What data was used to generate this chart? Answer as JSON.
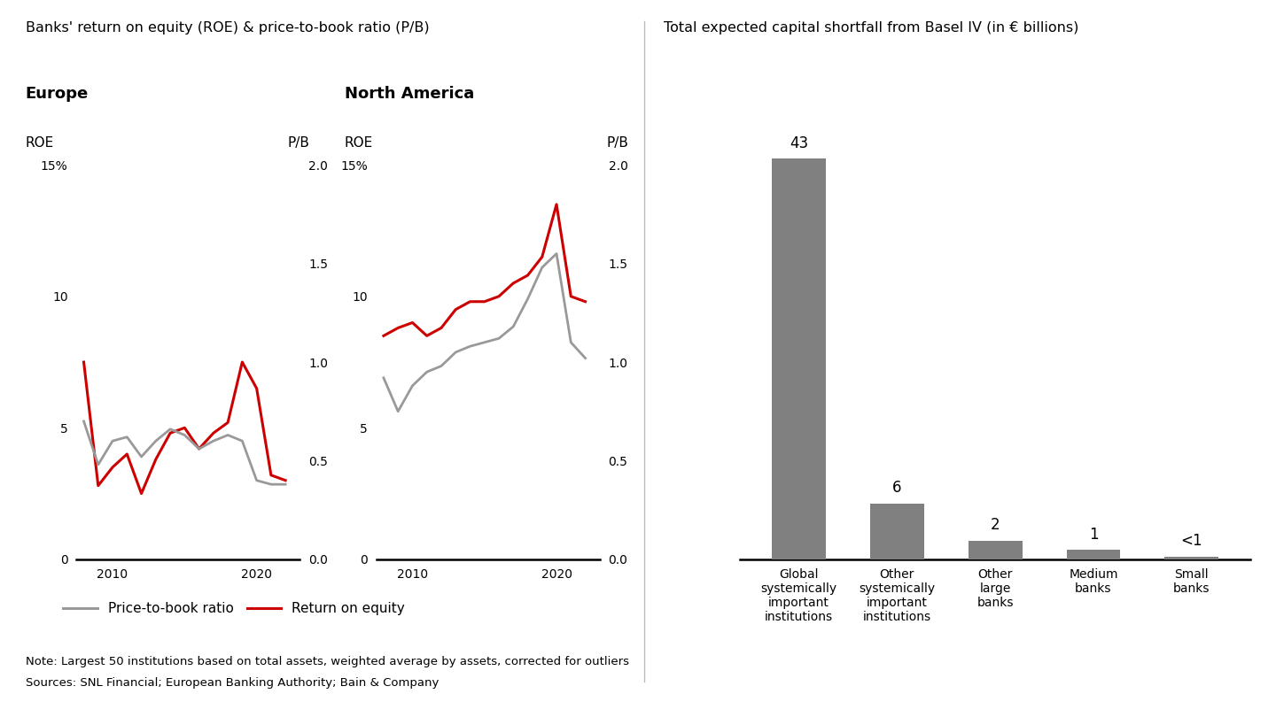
{
  "left_title": "Banks' return on equity (ROE) & price-to-book ratio (P/B)",
  "right_title": "Total expected capital shortfall from Basel IV (in € billions)",
  "note": "Note: Largest 50 institutions based on total assets, weighted average by assets, corrected for outliers",
  "sources": "Sources: SNL Financial; European Banking Authority; Bain & Company",
  "europe_label": "Europe",
  "na_label": "North America",
  "europe_years": [
    2008,
    2009,
    2010,
    2011,
    2012,
    2013,
    2014,
    2015,
    2016,
    2017,
    2018,
    2019,
    2020,
    2021,
    2022
  ],
  "europe_roe": [
    7.5,
    2.8,
    3.5,
    4.0,
    2.5,
    3.8,
    4.8,
    5.0,
    4.2,
    4.8,
    5.2,
    7.5,
    6.5,
    3.2,
    3.0
  ],
  "europe_pb": [
    0.7,
    0.48,
    0.6,
    0.62,
    0.52,
    0.6,
    0.66,
    0.63,
    0.56,
    0.6,
    0.63,
    0.6,
    0.4,
    0.38,
    0.38
  ],
  "na_years": [
    2008,
    2009,
    2010,
    2011,
    2012,
    2013,
    2014,
    2015,
    2016,
    2017,
    2018,
    2019,
    2020,
    2021,
    2022
  ],
  "na_roe": [
    8.5,
    8.8,
    9.0,
    8.5,
    8.8,
    9.5,
    9.8,
    9.8,
    10.0,
    10.5,
    10.8,
    11.5,
    13.5,
    10.0,
    9.8
  ],
  "na_pb": [
    0.92,
    0.75,
    0.88,
    0.95,
    0.98,
    1.05,
    1.08,
    1.1,
    1.12,
    1.18,
    1.32,
    1.48,
    1.55,
    1.1,
    1.02
  ],
  "bar_categories": [
    "Global\nsystemically\nimportant\ninstitutions",
    "Other\nsystemically\nimportant\ninstitutions",
    "Other\nlarge\nbanks",
    "Medium\nbanks",
    "Small\nbanks"
  ],
  "bar_values": [
    43,
    6,
    2,
    1,
    0.3
  ],
  "bar_labels": [
    "43",
    "6",
    "2",
    "1",
    "<1"
  ],
  "bar_color": "#808080",
  "roe_color": "#cc0000",
  "pb_color": "#999999",
  "bg_color": "#ffffff",
  "text_color": "#000000",
  "legend_pb": "Price-to-book ratio",
  "legend_roe": "Return on equity"
}
